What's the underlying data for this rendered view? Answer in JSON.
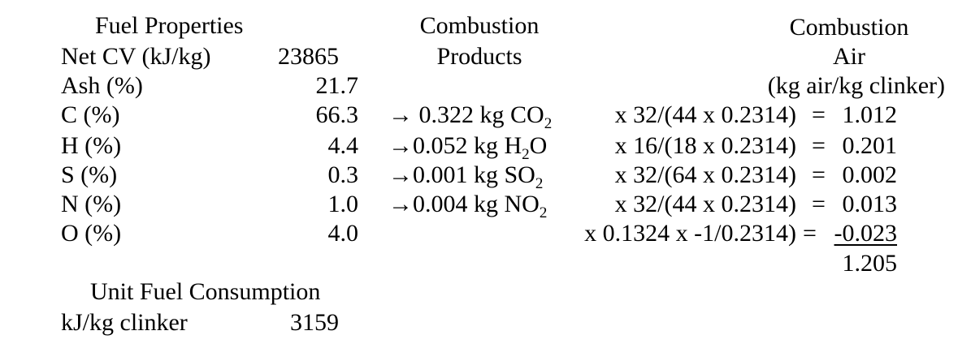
{
  "fuel_properties": {
    "heading": "Fuel Properties",
    "rows": [
      {
        "label": "Net CV (kJ/kg)",
        "value": "23865"
      },
      {
        "label": "Ash (%)",
        "value": "21.7"
      },
      {
        "label": "C (%)",
        "value": "66.3"
      },
      {
        "label": "H (%)",
        "value": "4.4"
      },
      {
        "label": "S (%)",
        "value": "0.3"
      },
      {
        "label": "N (%)",
        "value": "1.0"
      },
      {
        "label": "O (%)",
        "value": "4.0"
      }
    ]
  },
  "combustion_products": {
    "heading_line1": "Combustion",
    "heading_line2": "Products",
    "rows": [
      {
        "arrow": "→",
        "amount": "0.322 kg",
        "formula": "CO",
        "sub": "2",
        "suffix": ""
      },
      {
        "arrow": "→",
        "amount": "0.052 kg",
        "formula": "H",
        "sub": "2",
        "suffix": "O"
      },
      {
        "arrow": "→",
        "amount": "0.001 kg",
        "formula": "SO",
        "sub": "2",
        "suffix": ""
      },
      {
        "arrow": "→",
        "amount": "0.004 kg",
        "formula": "NO",
        "sub": "2",
        "suffix": ""
      }
    ]
  },
  "combustion_air": {
    "heading_line1": "Combustion",
    "heading_line2": "Air",
    "heading_line3": "(kg air/kg clinker)",
    "rows": [
      {
        "expr": "x 32/(44 x 0.2314)",
        "eq": "=",
        "result": "1.012"
      },
      {
        "expr": "x 16/(18 x 0.2314)",
        "eq": "=",
        "result": "0.201"
      },
      {
        "expr": "x 32/(64 x 0.2314)",
        "eq": "=",
        "result": "0.002"
      },
      {
        "expr": "x 32/(44 x 0.2314)",
        "eq": "=",
        "result": "0.013"
      },
      {
        "expr": "x 0.1324 x -1/0.2314)",
        "eq": "=",
        "result": "-0.023"
      }
    ],
    "total": "1.205"
  },
  "unit_fuel": {
    "heading": "Unit Fuel Consumption",
    "label": "kJ/kg clinker",
    "value": "3159"
  }
}
